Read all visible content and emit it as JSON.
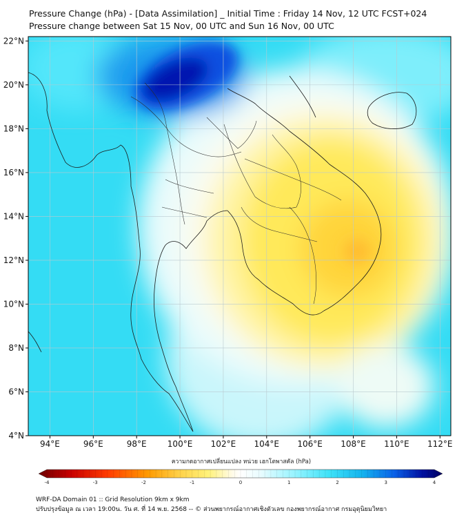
{
  "title": {
    "line1": "Pressure Change (hPa) - [Data Assimilation] _ Initial Time : Friday 14 Nov, 12 UTC FCST+024",
    "line2": "Pressure change between Sat 15 Nov, 00 UTC and Sun 16 Nov, 00 UTC"
  },
  "map": {
    "lat_labels": [
      "22°N",
      "20°N",
      "18°N",
      "16°N",
      "14°N",
      "12°N",
      "10°N",
      "8°N",
      "6°N",
      "4°N"
    ],
    "lon_labels": [
      "94°E",
      "96°E",
      "98°E",
      "100°E",
      "102°E",
      "104°E",
      "106°E",
      "108°E",
      "110°E",
      "112°E"
    ],
    "lat_values": [
      22,
      20,
      18,
      16,
      14,
      12,
      10,
      8,
      6,
      4
    ],
    "lon_values": [
      94,
      96,
      98,
      100,
      102,
      104,
      106,
      108,
      110,
      112
    ],
    "lon_range": [
      93,
      112.5
    ],
    "lat_range": [
      4,
      22.2
    ]
  },
  "colorbar": {
    "label": "ความกดอากาศเปลี่ยนแปลง หน่วย เฮกโตพาสคัล (hPa)",
    "ticks": [
      "-4",
      "-3",
      "-2",
      "-1",
      "0",
      "1",
      "2",
      "3",
      "4"
    ],
    "tick_values": [
      -4,
      -3,
      -2,
      -1,
      0,
      1,
      2,
      3,
      4
    ],
    "range": [
      -4,
      4
    ],
    "colors": [
      "#6e0000",
      "#d40000",
      "#ff3a00",
      "#ff9a00",
      "#ffd24a",
      "#fff27a",
      "#fffbe0",
      "#ffffff",
      "#e8fcff",
      "#9af4ff",
      "#3ee2f8",
      "#14b4ee",
      "#0a62e8",
      "#0010a0",
      "#000060"
    ]
  },
  "footer": {
    "line1": "WRF-DA Domain 01 :: Grid Resolution 9km x 9km",
    "line2": "ปรับปรุงข้อมูล ณ เวลา 19:00น. วัน ศ. ที่ 14 พ.ย. 2568 -- © ส่วนพยากรณ์อากาศเชิงตัวเลข กองพยากรณ์อากาศ กรมอุตุนิยมวิทยา"
  }
}
